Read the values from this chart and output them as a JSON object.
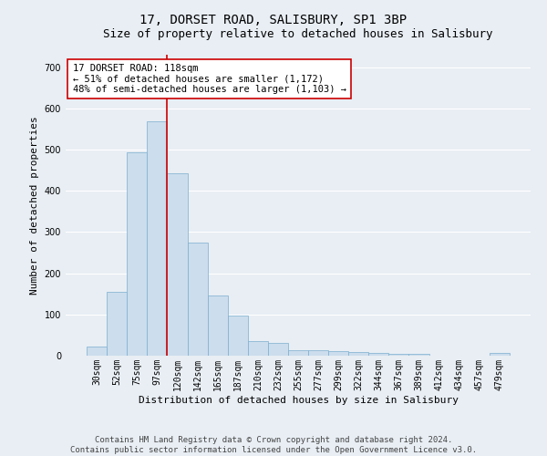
{
  "title": "17, DORSET ROAD, SALISBURY, SP1 3BP",
  "subtitle": "Size of property relative to detached houses in Salisbury",
  "xlabel": "Distribution of detached houses by size in Salisbury",
  "ylabel": "Number of detached properties",
  "bar_color": "#ccdded",
  "bar_edge_color": "#7baece",
  "vline_color": "#cc0000",
  "vline_x_index": 3.5,
  "categories": [
    "30sqm",
    "52sqm",
    "75sqm",
    "97sqm",
    "120sqm",
    "142sqm",
    "165sqm",
    "187sqm",
    "210sqm",
    "232sqm",
    "255sqm",
    "277sqm",
    "299sqm",
    "322sqm",
    "344sqm",
    "367sqm",
    "389sqm",
    "412sqm",
    "434sqm",
    "457sqm",
    "479sqm"
  ],
  "values": [
    22,
    155,
    493,
    568,
    443,
    274,
    145,
    97,
    35,
    31,
    14,
    14,
    12,
    9,
    6,
    5,
    5,
    0,
    0,
    0,
    7
  ],
  "ylim": [
    0,
    730
  ],
  "yticks": [
    0,
    100,
    200,
    300,
    400,
    500,
    600,
    700
  ],
  "annotation_line1": "17 DORSET ROAD: 118sqm",
  "annotation_line2": "← 51% of detached houses are smaller (1,172)",
  "annotation_line3": "48% of semi-detached houses are larger (1,103) →",
  "annotation_box_color": "#ffffff",
  "annotation_box_edge": "#cc0000",
  "footer_line1": "Contains HM Land Registry data © Crown copyright and database right 2024.",
  "footer_line2": "Contains public sector information licensed under the Open Government Licence v3.0.",
  "figure_facecolor": "#e8eef4",
  "axes_facecolor": "#e8eef4",
  "grid_color": "#ffffff",
  "title_fontsize": 10,
  "subtitle_fontsize": 9,
  "axis_label_fontsize": 8,
  "tick_fontsize": 7,
  "footer_fontsize": 6.5,
  "annotation_fontsize": 7.5
}
